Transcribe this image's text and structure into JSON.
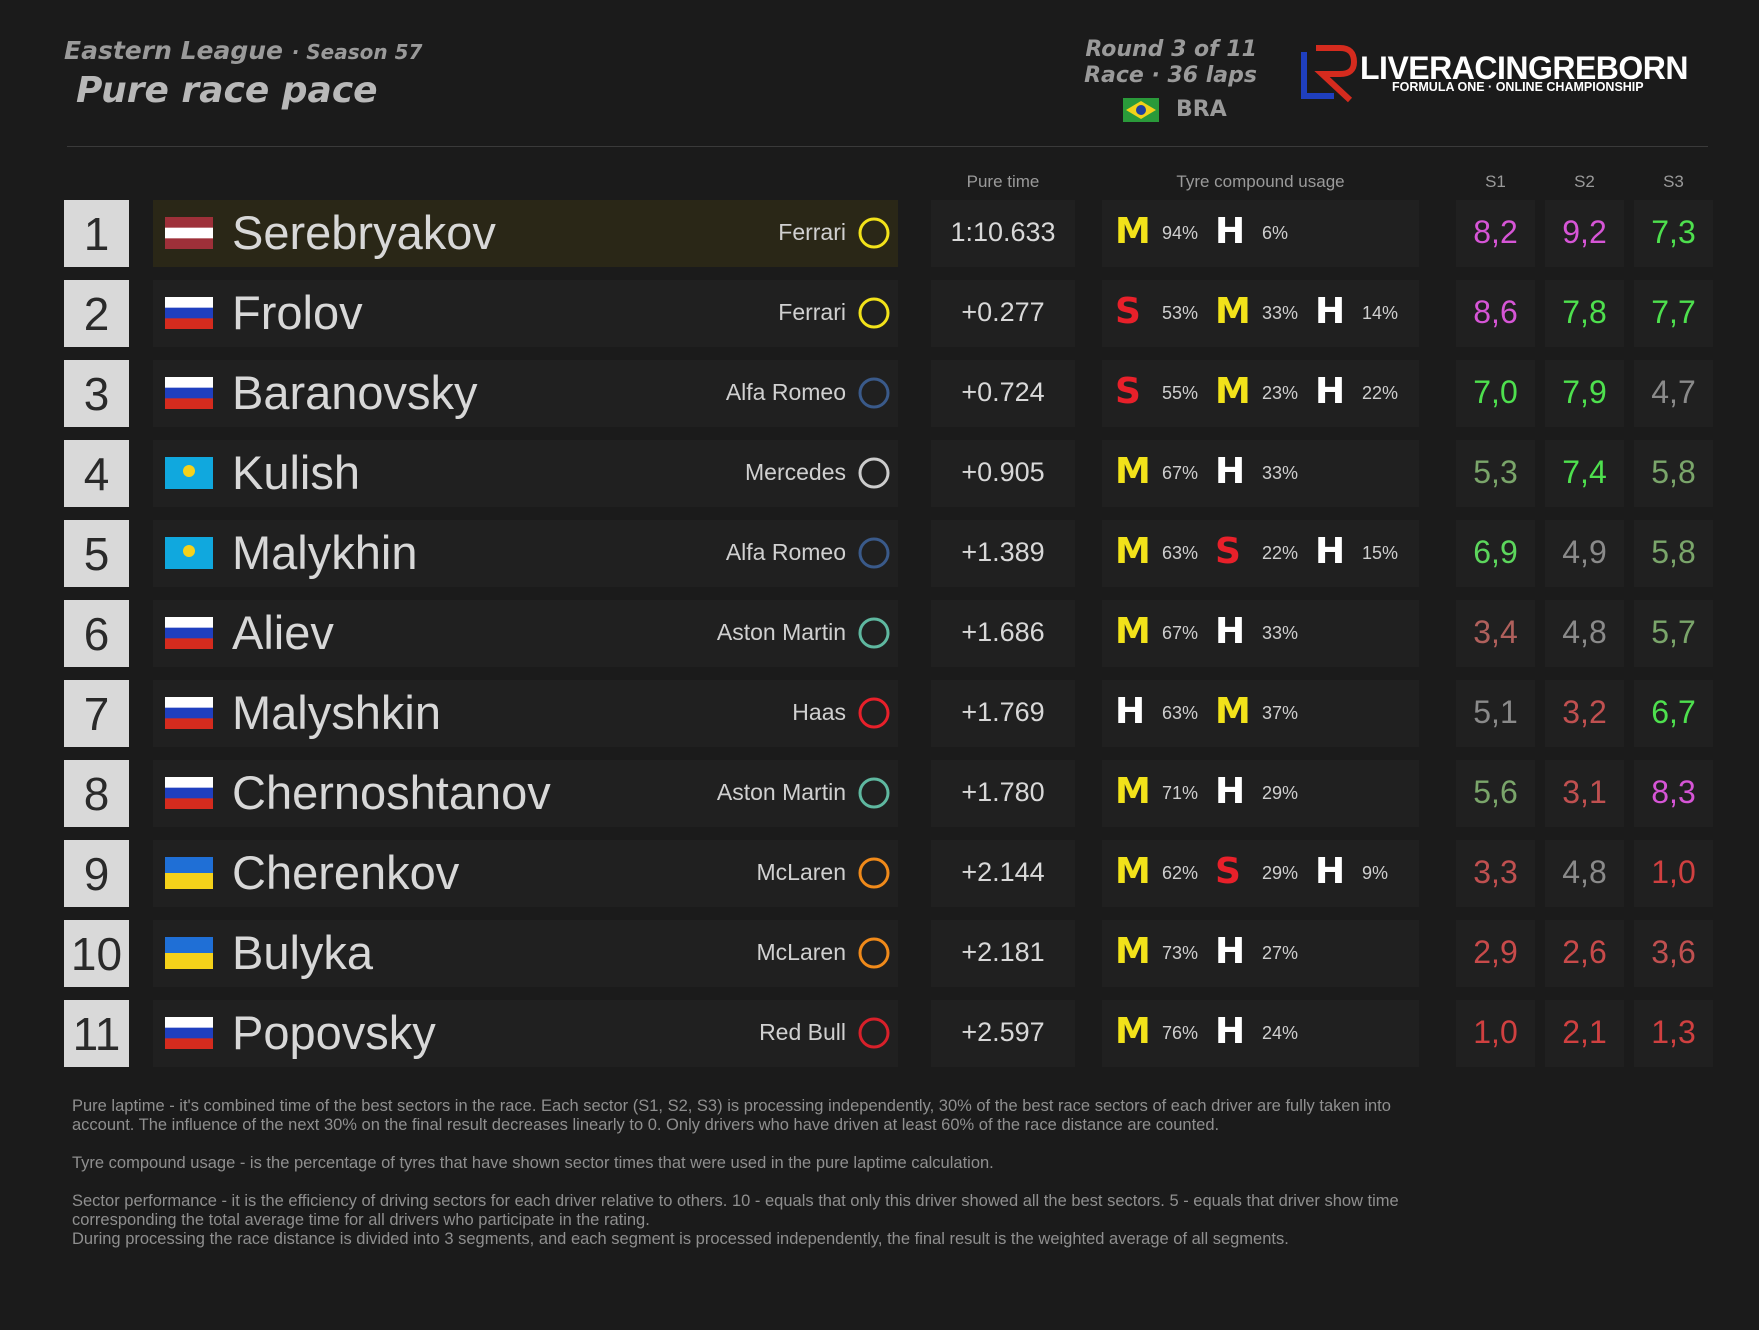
{
  "header": {
    "league": "Eastern League",
    "season": "· Season 57",
    "title": "Pure race pace",
    "round": "Round 3 of 11",
    "race": "Race · 36 laps",
    "country": "BRA"
  },
  "logo": {
    "name": "LIVERACINGREBORN",
    "tagline": "FORMULA ONE · ONLINE CHAMPIONSHIP"
  },
  "columns": {
    "time": "Pure time",
    "tyres": "Tyre compound usage",
    "s1": "S1",
    "s2": "S2",
    "s3": "S3"
  },
  "compound_colors": {
    "M": "#f2e21a",
    "H": "#ffffff",
    "S": "#e8202a"
  },
  "table": {
    "rows": [
      {
        "pos": "1",
        "driver": "Serebryakov",
        "flag": [
          "#9e3039",
          "#ffffff",
          "#9e3039"
        ],
        "team": "Ferrari",
        "logo_color": "#f2e21a",
        "time": "1:10.633",
        "highlight": true,
        "tyres": [
          {
            "compound": "M",
            "share": "94%"
          },
          {
            "compound": "H",
            "share": "6%"
          }
        ],
        "sectors": [
          {
            "text": "8,2",
            "color": "#d655d6"
          },
          {
            "text": "9,2",
            "color": "#d655d6"
          },
          {
            "text": "7,3",
            "color": "#4ee04e"
          }
        ]
      },
      {
        "pos": "2",
        "driver": "Frolov",
        "flag": [
          "#ffffff",
          "#1f3fbf",
          "#d52b1e"
        ],
        "team": "Ferrari",
        "logo_color": "#f2e21a",
        "time": "+0.277",
        "tyres": [
          {
            "compound": "S",
            "share": "53%"
          },
          {
            "compound": "M",
            "share": "33%"
          },
          {
            "compound": "H",
            "share": "14%"
          }
        ],
        "sectors": [
          {
            "text": "8,6",
            "color": "#d655d6"
          },
          {
            "text": "7,8",
            "color": "#4ee04e"
          },
          {
            "text": "7,7",
            "color": "#4ee04e"
          }
        ]
      },
      {
        "pos": "3",
        "driver": "Baranovsky",
        "flag": [
          "#ffffff",
          "#1f3fbf",
          "#d52b1e"
        ],
        "team": "Alfa Romeo",
        "logo_color": "#3a5a8a",
        "time": "+0.724",
        "tyres": [
          {
            "compound": "S",
            "share": "55%"
          },
          {
            "compound": "M",
            "share": "23%"
          },
          {
            "compound": "H",
            "share": "22%"
          }
        ],
        "sectors": [
          {
            "text": "7,0",
            "color": "#4ee04e"
          },
          {
            "text": "7,9",
            "color": "#4ee04e"
          },
          {
            "text": "4,7",
            "color": "#8a8a8a"
          }
        ]
      },
      {
        "pos": "4",
        "driver": "Kulish",
        "flag": [
          "#10a8de"
        ],
        "team": "Mercedes",
        "logo_color": "#cccccc",
        "time": "+0.905",
        "tyres": [
          {
            "compound": "M",
            "share": "67%"
          },
          {
            "compound": "H",
            "share": "33%"
          }
        ],
        "sectors": [
          {
            "text": "5,3",
            "color": "#7aa56a"
          },
          {
            "text": "7,4",
            "color": "#4ee04e"
          },
          {
            "text": "5,8",
            "color": "#7aa56a"
          }
        ]
      },
      {
        "pos": "5",
        "driver": "Malykhin",
        "flag": [
          "#10a8de"
        ],
        "team": "Alfa Romeo",
        "logo_color": "#3a5a8a",
        "time": "+1.389",
        "tyres": [
          {
            "compound": "M",
            "share": "63%"
          },
          {
            "compound": "S",
            "share": "22%"
          },
          {
            "compound": "H",
            "share": "15%"
          }
        ],
        "sectors": [
          {
            "text": "6,9",
            "color": "#5cd65c"
          },
          {
            "text": "4,9",
            "color": "#8a8a8a"
          },
          {
            "text": "5,8",
            "color": "#7aa56a"
          }
        ]
      },
      {
        "pos": "6",
        "driver": "Aliev",
        "flag": [
          "#ffffff",
          "#1f3fbf",
          "#d52b1e"
        ],
        "team": "Aston Martin",
        "logo_color": "#5fb8a0",
        "time": "+1.686",
        "tyres": [
          {
            "compound": "M",
            "share": "67%"
          },
          {
            "compound": "H",
            "share": "33%"
          }
        ],
        "sectors": [
          {
            "text": "3,4",
            "color": "#b0605c"
          },
          {
            "text": "4,8",
            "color": "#8a8a8a"
          },
          {
            "text": "5,7",
            "color": "#7aa56a"
          }
        ]
      },
      {
        "pos": "7",
        "driver": "Malyshkin",
        "flag": [
          "#ffffff",
          "#1f3fbf",
          "#d52b1e"
        ],
        "team": "Haas",
        "logo_color": "#e8202a",
        "time": "+1.769",
        "tyres": [
          {
            "compound": "H",
            "share": "63%"
          },
          {
            "compound": "M",
            "share": "37%"
          }
        ],
        "sectors": [
          {
            "text": "5,1",
            "color": "#8a8a8a"
          },
          {
            "text": "3,2",
            "color": "#c05050"
          },
          {
            "text": "6,7",
            "color": "#4ee04e"
          }
        ]
      },
      {
        "pos": "8",
        "driver": "Chernoshtanov",
        "flag": [
          "#ffffff",
          "#1f3fbf",
          "#d52b1e"
        ],
        "team": "Aston Martin",
        "logo_color": "#5fb8a0",
        "time": "+1.780",
        "tyres": [
          {
            "compound": "M",
            "share": "71%"
          },
          {
            "compound": "H",
            "share": "29%"
          }
        ],
        "sectors": [
          {
            "text": "5,6",
            "color": "#7aa56a"
          },
          {
            "text": "3,1",
            "color": "#c05050"
          },
          {
            "text": "8,3",
            "color": "#d655d6"
          }
        ]
      },
      {
        "pos": "9",
        "driver": "Cherenkov",
        "flag": [
          "#1f6fd6",
          "#f5d21a"
        ],
        "team": "McLaren",
        "logo_color": "#f08a1a",
        "time": "+2.144",
        "tyres": [
          {
            "compound": "M",
            "share": "62%"
          },
          {
            "compound": "S",
            "share": "29%"
          },
          {
            "compound": "H",
            "share": "9%"
          }
        ],
        "sectors": [
          {
            "text": "3,3",
            "color": "#c05050"
          },
          {
            "text": "4,8",
            "color": "#8a8a8a"
          },
          {
            "text": "1,0",
            "color": "#d04040"
          }
        ]
      },
      {
        "pos": "10",
        "driver": "Bulyka",
        "flag": [
          "#1f6fd6",
          "#f5d21a"
        ],
        "team": "McLaren",
        "logo_color": "#f08a1a",
        "time": "+2.181",
        "tyres": [
          {
            "compound": "M",
            "share": "73%"
          },
          {
            "compound": "H",
            "share": "27%"
          }
        ],
        "sectors": [
          {
            "text": "2,9",
            "color": "#c84a4a"
          },
          {
            "text": "2,6",
            "color": "#c84a4a"
          },
          {
            "text": "3,6",
            "color": "#c05050"
          }
        ]
      },
      {
        "pos": "11",
        "driver": "Popovsky",
        "flag": [
          "#ffffff",
          "#1f3fbf",
          "#d52b1e"
        ],
        "team": "Red Bull",
        "logo_color": "#d8202a",
        "time": "+2.597",
        "tyres": [
          {
            "compound": "M",
            "share": "76%"
          },
          {
            "compound": "H",
            "share": "24%"
          }
        ],
        "sectors": [
          {
            "text": "1,0",
            "color": "#d04040"
          },
          {
            "text": "2,1",
            "color": "#d04040"
          },
          {
            "text": "1,3",
            "color": "#d04040"
          }
        ]
      }
    ]
  },
  "notes": [
    "Pure laptime - it's combined time of the best sectors in the race. Each sector (S1, S2, S3) is processing independently, 30% of the best race sectors of each driver are fully taken into account. The influence of the next 30% on the final result decreases linearly to 0. Only drivers who have driven at least 60% of the race distance are counted.",
    "Tyre compound usage - is the percentage of tyres that have shown sector times that were used in the pure laptime calculation.",
    "Sector performance - it is the efficiency of driving sectors for each driver relative to others. 10 - equals that only this driver showed all the best sectors. 5 - equals that driver show time corresponding the total average time for all drivers who participate in the rating.",
    "During processing the race distance is divided into 3 segments, and each segment is processed independently, the final result is the weighted average of all segments."
  ]
}
